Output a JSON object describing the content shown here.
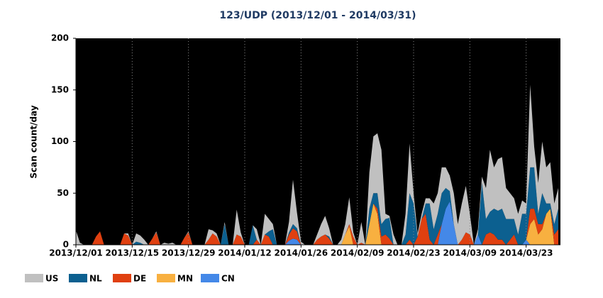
{
  "chart_data": {
    "type": "stacked-area",
    "title": "123/UDP (2013/12/01 - 2014/03/31)",
    "y_label": "Scan count/day",
    "x": [
      "2013/12/01",
      "2013/12/02",
      "2013/12/03",
      "2013/12/04",
      "2013/12/05",
      "2013/12/06",
      "2013/12/07",
      "2013/12/08",
      "2013/12/09",
      "2013/12/10",
      "2013/12/11",
      "2013/12/12",
      "2013/12/13",
      "2013/12/14",
      "2013/12/15",
      "2013/12/16",
      "2013/12/17",
      "2013/12/18",
      "2013/12/19",
      "2013/12/20",
      "2013/12/21",
      "2013/12/22",
      "2013/12/23",
      "2013/12/24",
      "2013/12/25",
      "2013/12/26",
      "2013/12/27",
      "2013/12/28",
      "2013/12/29",
      "2013/12/30",
      "2013/12/31",
      "2014/01/01",
      "2014/01/02",
      "2014/01/03",
      "2014/01/04",
      "2014/01/05",
      "2014/01/06",
      "2014/01/07",
      "2014/01/08",
      "2014/01/09",
      "2014/01/10",
      "2014/01/11",
      "2014/01/12",
      "2014/01/13",
      "2014/01/14",
      "2014/01/15",
      "2014/01/16",
      "2014/01/17",
      "2014/01/18",
      "2014/01/19",
      "2014/01/20",
      "2014/01/21",
      "2014/01/22",
      "2014/01/23",
      "2014/01/24",
      "2014/01/25",
      "2014/01/26",
      "2014/01/27",
      "2014/01/28",
      "2014/01/29",
      "2014/01/30",
      "2014/01/31",
      "2014/02/01",
      "2014/02/02",
      "2014/02/03",
      "2014/02/04",
      "2014/02/05",
      "2014/02/06",
      "2014/02/07",
      "2014/02/08",
      "2014/02/09",
      "2014/02/10",
      "2014/02/11",
      "2014/02/12",
      "2014/02/13",
      "2014/02/14",
      "2014/02/15",
      "2014/02/16",
      "2014/02/17",
      "2014/02/18",
      "2014/02/19",
      "2014/02/20",
      "2014/02/21",
      "2014/02/22",
      "2014/02/23",
      "2014/02/24",
      "2014/02/25",
      "2014/02/26",
      "2014/02/27",
      "2014/02/28",
      "2014/03/01",
      "2014/03/02",
      "2014/03/03",
      "2014/03/04",
      "2014/03/05",
      "2014/03/06",
      "2014/03/07",
      "2014/03/08",
      "2014/03/09",
      "2014/03/10",
      "2014/03/11",
      "2014/03/12",
      "2014/03/13",
      "2014/03/14",
      "2014/03/15",
      "2014/03/16",
      "2014/03/17",
      "2014/03/18",
      "2014/03/19",
      "2014/03/20",
      "2014/03/21",
      "2014/03/22",
      "2014/03/23",
      "2014/03/24",
      "2014/03/25",
      "2014/03/26",
      "2014/03/27",
      "2014/03/28",
      "2014/03/29",
      "2014/03/30",
      "2014/03/31"
    ],
    "xticks": [
      "2013/12/01",
      "2013/12/15",
      "2013/12/29",
      "2014/01/12",
      "2014/01/26",
      "2014/02/09",
      "2014/02/23",
      "2014/03/09",
      "2014/03/23"
    ],
    "ylim": [
      0,
      200
    ],
    "yticks": [
      0,
      50,
      100,
      150,
      200
    ],
    "grid": true,
    "legend": "bottom-left",
    "series": [
      {
        "name": "US",
        "color": "#c0c0c0",
        "values": [
          14,
          2,
          0,
          0,
          0,
          0,
          0,
          0,
          0,
          0,
          0,
          0,
          0,
          2,
          0,
          8,
          7,
          5,
          0,
          0,
          1,
          0,
          2,
          1,
          2,
          0,
          0,
          0,
          1,
          0,
          0,
          0,
          0,
          10,
          3,
          3,
          0,
          2,
          0,
          0,
          24,
          4,
          0,
          0,
          0,
          10,
          0,
          20,
          12,
          5,
          0,
          0,
          0,
          10,
          43,
          15,
          3,
          0,
          0,
          0,
          5,
          12,
          18,
          8,
          0,
          0,
          5,
          10,
          26,
          4,
          0,
          20,
          0,
          35,
          55,
          58,
          72,
          5,
          2,
          10,
          0,
          0,
          20,
          48,
          10,
          3,
          5,
          5,
          5,
          25,
          20,
          25,
          20,
          15,
          30,
          20,
          35,
          45,
          20,
          0,
          5,
          6,
          30,
          60,
          40,
          50,
          50,
          30,
          25,
          20,
          20,
          13,
          10,
          80,
          20,
          30,
          50,
          35,
          40,
          20,
          20
        ]
      },
      {
        "name": "NL",
        "color": "#0c6090",
        "values": [
          0,
          0,
          0,
          0,
          0,
          0,
          0,
          0,
          0,
          0,
          0,
          0,
          0,
          0,
          0,
          3,
          2,
          0,
          0,
          0,
          0,
          0,
          0,
          0,
          0,
          0,
          0,
          0,
          0,
          0,
          0,
          0,
          0,
          0,
          0,
          0,
          0,
          20,
          0,
          0,
          0,
          0,
          0,
          0,
          19,
          0,
          0,
          0,
          5,
          15,
          0,
          0,
          0,
          2,
          4,
          3,
          0,
          0,
          0,
          0,
          0,
          0,
          0,
          2,
          0,
          0,
          0,
          0,
          0,
          0,
          0,
          0,
          0,
          15,
          10,
          15,
          12,
          15,
          20,
          0,
          0,
          0,
          10,
          45,
          40,
          0,
          0,
          10,
          35,
          15,
          20,
          30,
          20,
          10,
          0,
          0,
          0,
          0,
          0,
          0,
          0,
          60,
          15,
          20,
          25,
          28,
          30,
          25,
          20,
          15,
          10,
          30,
          25,
          40,
          40,
          10,
          30,
          10,
          5,
          10,
          20
        ]
      },
      {
        "name": "DE",
        "color": "#e04010",
        "values": [
          0,
          0,
          0,
          0,
          0,
          8,
          13,
          0,
          0,
          0,
          0,
          0,
          11,
          9,
          0,
          0,
          0,
          0,
          0,
          6,
          12,
          0,
          0,
          0,
          0,
          0,
          0,
          7,
          12,
          0,
          0,
          0,
          0,
          5,
          11,
          8,
          0,
          0,
          0,
          0,
          10,
          8,
          0,
          0,
          0,
          5,
          0,
          10,
          8,
          0,
          0,
          0,
          0,
          6,
          10,
          8,
          0,
          0,
          0,
          0,
          5,
          8,
          10,
          6,
          0,
          0,
          0,
          0,
          2,
          8,
          0,
          2,
          0,
          0,
          0,
          5,
          8,
          10,
          6,
          0,
          0,
          0,
          0,
          5,
          0,
          8,
          25,
          30,
          5,
          0,
          10,
          0,
          0,
          0,
          0,
          0,
          5,
          12,
          10,
          0,
          0,
          0,
          10,
          12,
          10,
          5,
          5,
          0,
          5,
          10,
          0,
          0,
          0,
          15,
          10,
          10,
          5,
          0,
          0,
          10,
          15
        ]
      },
      {
        "name": "MN",
        "color": "#f8b040",
        "values": [
          0,
          0,
          0,
          0,
          0,
          0,
          0,
          0,
          0,
          0,
          0,
          0,
          0,
          0,
          0,
          0,
          0,
          0,
          0,
          0,
          0,
          0,
          0,
          0,
          0,
          0,
          0,
          0,
          0,
          0,
          0,
          0,
          0,
          0,
          0,
          0,
          0,
          0,
          0,
          0,
          0,
          0,
          0,
          0,
          0,
          0,
          0,
          0,
          0,
          0,
          0,
          0,
          0,
          0,
          0,
          0,
          0,
          0,
          0,
          0,
          0,
          0,
          0,
          0,
          0,
          0,
          0,
          10,
          18,
          0,
          0,
          0,
          0,
          20,
          40,
          30,
          0,
          0,
          0,
          0,
          0,
          0,
          0,
          0,
          0,
          0,
          0,
          0,
          0,
          0,
          0,
          0,
          0,
          0,
          0,
          0,
          0,
          0,
          0,
          0,
          0,
          0,
          0,
          0,
          0,
          0,
          0,
          0,
          0,
          0,
          0,
          0,
          0,
          20,
          25,
          10,
          15,
          30,
          35,
          0,
          0
        ]
      },
      {
        "name": "CN",
        "color": "#4488e8",
        "values": [
          0,
          0,
          0,
          0,
          0,
          0,
          0,
          0,
          0,
          0,
          0,
          0,
          0,
          0,
          0,
          0,
          0,
          0,
          0,
          0,
          0,
          0,
          0,
          0,
          0,
          0,
          0,
          0,
          0,
          0,
          0,
          0,
          0,
          0,
          0,
          0,
          0,
          0,
          0,
          0,
          0,
          0,
          0,
          0,
          0,
          0,
          0,
          0,
          0,
          0,
          0,
          0,
          0,
          4,
          6,
          5,
          0,
          0,
          0,
          0,
          0,
          0,
          0,
          0,
          0,
          0,
          0,
          0,
          0,
          0,
          0,
          0,
          0,
          0,
          0,
          0,
          0,
          0,
          0,
          0,
          0,
          0,
          0,
          0,
          0,
          0,
          0,
          0,
          0,
          0,
          0,
          20,
          35,
          42,
          20,
          0,
          0,
          0,
          0,
          0,
          10,
          0,
          0,
          0,
          0,
          0,
          0,
          0,
          0,
          0,
          0,
          0,
          5,
          0,
          0,
          0,
          0,
          0,
          0,
          0,
          0
        ]
      }
    ]
  }
}
